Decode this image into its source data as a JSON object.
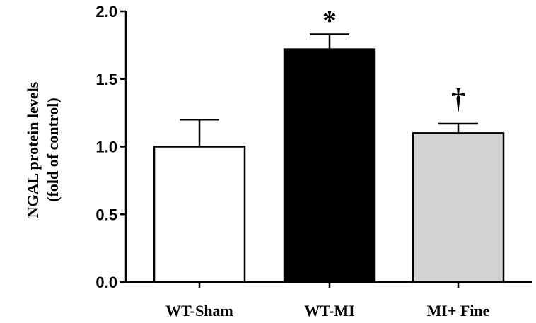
{
  "chart_data": {
    "type": "bar",
    "categories": [
      "WT-Sham",
      "WT-MI",
      "MI+ Fine"
    ],
    "values": [
      1.0,
      1.72,
      1.1
    ],
    "errors": [
      0.2,
      0.11,
      0.07
    ],
    "bar_colors": [
      "#ffffff",
      "#000000",
      "#d3d3d3"
    ],
    "annotations": [
      "",
      "*",
      "†"
    ],
    "ylabel_lines": [
      "NGAL protein levels",
      "(fold of control)"
    ],
    "ylim": [
      0,
      2.0
    ],
    "yticks": [
      "0.0",
      "0.5",
      "1.0",
      "1.5",
      "2.0"
    ],
    "ytick_values": [
      0,
      0.5,
      1.0,
      1.5,
      2.0
    ],
    "grid": false,
    "legend": "none"
  }
}
